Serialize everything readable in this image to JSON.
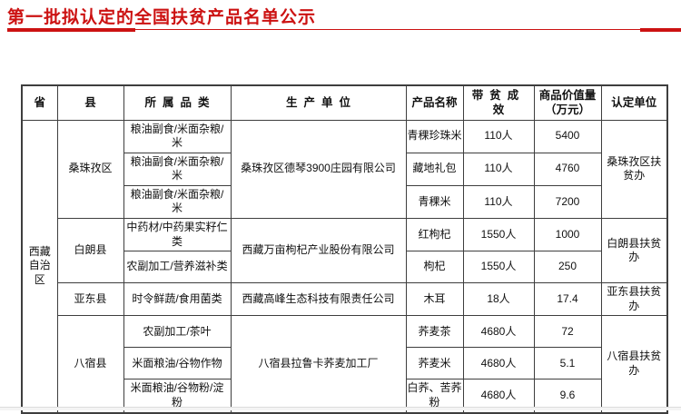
{
  "page": {
    "title": "第一批拟认定的全国扶贫产品名单公示",
    "accent_color": "#cc1212"
  },
  "table": {
    "headers": [
      {
        "label": "省",
        "name": "col-header-province"
      },
      {
        "label": "县",
        "name": "col-header-county"
      },
      {
        "label": "所属品类",
        "name": "col-header-category",
        "spaced": true
      },
      {
        "label": "生产单位",
        "name": "col-header-producer",
        "spaced": true
      },
      {
        "label": "产品名称",
        "name": "col-header-product-name"
      },
      {
        "label": "带贫成效",
        "name": "col-header-effect",
        "spaced": true
      },
      {
        "label": "商品价值量（万元）",
        "name": "col-header-value"
      },
      {
        "label": "认定单位",
        "name": "col-header-certifier"
      }
    ],
    "rows": [
      {
        "cells": [
          {
            "text": "西藏自治区",
            "rowspan": 9,
            "name": "province-cell"
          },
          {
            "text": "桑珠孜区",
            "rowspan": 3,
            "name": "county-cell"
          },
          {
            "text": "粮油副食/米面杂粮/米",
            "name": "category-cell"
          },
          {
            "text": "桑珠孜区德琴3900庄园有限公司",
            "rowspan": 3,
            "name": "producer-cell"
          },
          {
            "text": "青稞珍珠米",
            "name": "product-cell"
          },
          {
            "text": "110人",
            "name": "effect-cell"
          },
          {
            "text": "5400",
            "name": "value-cell"
          },
          {
            "text": "桑珠孜区扶贫办",
            "rowspan": 3,
            "name": "certifier-cell"
          }
        ]
      },
      {
        "cells": [
          {
            "text": "粮油副食/米面杂粮/米",
            "name": "category-cell"
          },
          {
            "text": "藏地礼包",
            "name": "product-cell"
          },
          {
            "text": "110人",
            "name": "effect-cell"
          },
          {
            "text": "4760",
            "name": "value-cell"
          }
        ]
      },
      {
        "cells": [
          {
            "text": "粮油副食/米面杂粮/米",
            "name": "category-cell"
          },
          {
            "text": "青稞米",
            "name": "product-cell"
          },
          {
            "text": "110人",
            "name": "effect-cell"
          },
          {
            "text": "7200",
            "name": "value-cell"
          }
        ]
      },
      {
        "cells": [
          {
            "text": "白朗县",
            "rowspan": 2,
            "name": "county-cell"
          },
          {
            "text": "中药材/中药果实籽仁类",
            "name": "category-cell"
          },
          {
            "text": "西藏万亩枸杞产业股份有限公司",
            "rowspan": 2,
            "name": "producer-cell"
          },
          {
            "text": "红枸杞",
            "name": "product-cell"
          },
          {
            "text": "1550人",
            "name": "effect-cell"
          },
          {
            "text": "1000",
            "name": "value-cell"
          },
          {
            "text": "白朗县扶贫办",
            "rowspan": 2,
            "name": "certifier-cell"
          }
        ]
      },
      {
        "cells": [
          {
            "text": "农副加工/营养滋补类",
            "name": "category-cell"
          },
          {
            "text": "枸杞",
            "name": "product-cell"
          },
          {
            "text": "1550人",
            "name": "effect-cell"
          },
          {
            "text": "250",
            "name": "value-cell"
          }
        ]
      },
      {
        "cells": [
          {
            "text": "亚东县",
            "name": "county-cell"
          },
          {
            "text": "时令鲜蔬/食用菌类",
            "name": "category-cell"
          },
          {
            "text": "西藏高峰生态科技有限责任公司",
            "name": "producer-cell"
          },
          {
            "text": "木耳",
            "name": "product-cell"
          },
          {
            "text": "18人",
            "name": "effect-cell"
          },
          {
            "text": "17.4",
            "name": "value-cell"
          },
          {
            "text": "亚东县扶贫办",
            "name": "certifier-cell"
          }
        ]
      },
      {
        "cells": [
          {
            "text": "八宿县",
            "rowspan": 3,
            "name": "county-cell"
          },
          {
            "text": "农副加工/茶叶",
            "name": "category-cell"
          },
          {
            "text": "八宿县拉鲁卡荞麦加工厂",
            "rowspan": 3,
            "name": "producer-cell"
          },
          {
            "text": "荞麦茶",
            "name": "product-cell"
          },
          {
            "text": "4680人",
            "name": "effect-cell"
          },
          {
            "text": "72",
            "name": "value-cell"
          },
          {
            "text": "八宿县扶贫办",
            "rowspan": 3,
            "name": "certifier-cell"
          }
        ]
      },
      {
        "cells": [
          {
            "text": "米面粮油/谷物作物",
            "name": "category-cell"
          },
          {
            "text": "荞麦米",
            "name": "product-cell"
          },
          {
            "text": "4680人",
            "name": "effect-cell"
          },
          {
            "text": "5.1",
            "name": "value-cell"
          }
        ]
      },
      {
        "cells": [
          {
            "text": "米面粮油/谷物粉/淀粉",
            "name": "category-cell"
          },
          {
            "text": "白荞、苦荞粉",
            "name": "product-cell"
          },
          {
            "text": "4680人",
            "name": "effect-cell"
          },
          {
            "text": "9.6",
            "name": "value-cell"
          }
        ]
      }
    ]
  }
}
